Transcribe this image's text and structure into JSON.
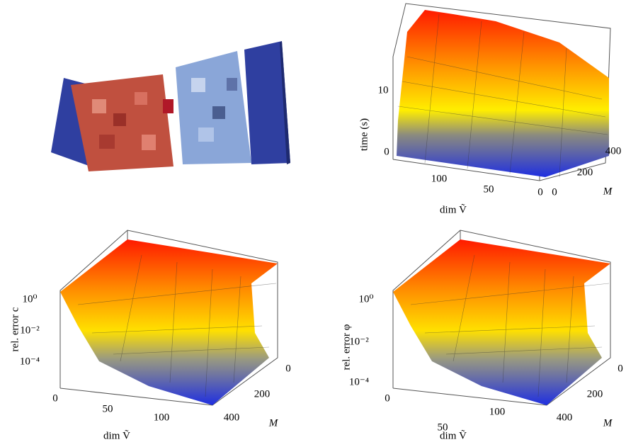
{
  "panels": [
    {
      "y_label": "time (s)",
      "y_ticks": [
        "10",
        "0"
      ],
      "x_label": "dim Ṽ",
      "x_ticks": [
        "100",
        "50",
        "0"
      ],
      "m_label": "M",
      "m_ticks": [
        "0",
        "200",
        "400"
      ]
    },
    {
      "y_label": "rel. error c",
      "y_ticks": [
        "10⁰",
        "10⁻²",
        "10⁻⁴"
      ],
      "x_label": "dim Ṽ",
      "x_ticks": [
        "0",
        "50",
        "100"
      ],
      "m_label": "M",
      "m_ticks": [
        "0",
        "200",
        "400"
      ]
    },
    {
      "y_label": "rel. error φ",
      "y_ticks": [
        "10⁰",
        "10⁻²",
        "10⁻⁴"
      ],
      "x_label": "dim Ṽ",
      "x_ticks": [
        "0",
        "50",
        "100"
      ],
      "m_label": "M",
      "m_ticks": [
        "0",
        "200",
        "400"
      ]
    }
  ]
}
